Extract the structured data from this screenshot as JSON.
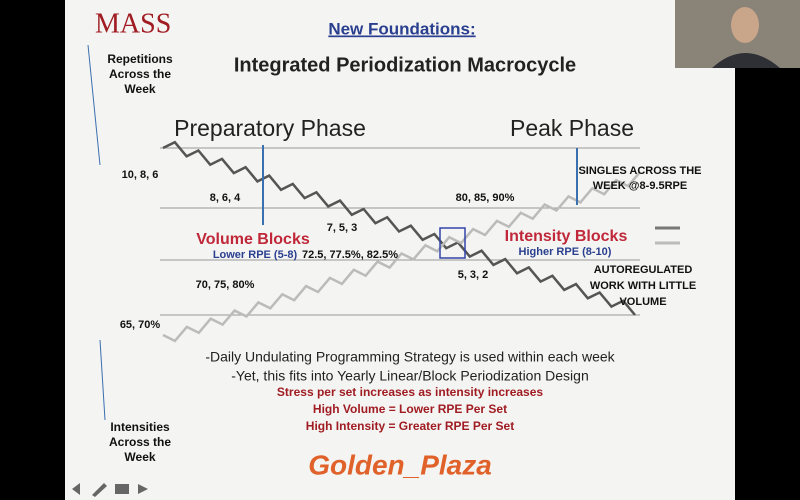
{
  "logo": "MASS",
  "slide": {
    "heading": "New Foundations:",
    "title": "Integrated Periodization Macrocycle",
    "left_top": [
      "Repetitions",
      "Across the",
      "Week"
    ],
    "left_bottom": [
      "Intensities",
      "Across the",
      "Week"
    ],
    "phases": [
      "Preparatory Phase",
      "Peak Phase"
    ],
    "labels": {
      "reps_1": "10, 8, 6",
      "reps_2": "8, 6, 4",
      "reps_3": "7, 5, 3",
      "reps_4": "5, 3, 2",
      "int_1": "65, 70%",
      "int_2": "70, 75, 80%",
      "int_3": "72.5, 77.5%, 82.5%",
      "int_4": "80, 85, 90%"
    },
    "blocks": [
      "Volume Blocks",
      "Intensity Blocks"
    ],
    "rpe": [
      "Lower RPE (5-8)",
      "Higher RPE (8-10)"
    ],
    "singles": [
      "SINGLES ACROSS THE",
      "WEEK @8-9.5RPE"
    ],
    "autoreg": [
      "AUTOREGULATED",
      "WORK WITH LITTLE",
      "VOLUME"
    ],
    "notes": [
      "-Daily Undulating Programming Strategy is used within each week",
      "-Yet, this fits into Yearly Linear/Block Periodization Design"
    ],
    "emphasis": [
      "Stress per set increases as intensity increases",
      "High Volume = Lower RPE Per Set",
      "High Intensity = Greater RPE Per Set"
    ],
    "watermark": "Golden_Plaza"
  }
}
